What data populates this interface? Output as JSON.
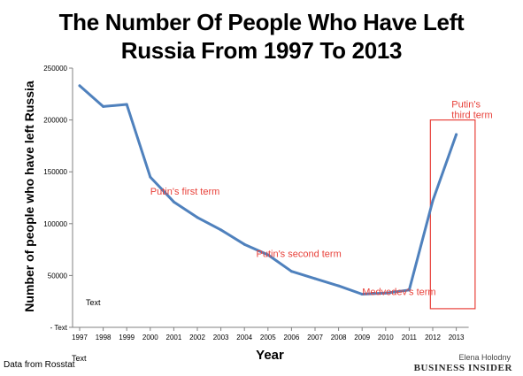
{
  "title_line1": "The Number Of People Who Have Left",
  "title_line2": "Russia From 1997 To 2013",
  "source": "Data from Rosstat",
  "credit_name": "Elena Holodny",
  "credit_brand": "BUSINESS INSIDER",
  "placeholder_text": "Text",
  "colors": {
    "line": "#4f81bd",
    "annotation": "#e8413a",
    "axis": "#808080"
  },
  "chart_data": {
    "type": "line",
    "title": "The Number Of People Who Have Left Russia From 1997 To 2013",
    "xlabel": "Year",
    "ylabel": "Number of people who have left Russia",
    "ylim": [
      0,
      250000
    ],
    "yticks": [
      0,
      50000,
      100000,
      150000,
      200000,
      250000
    ],
    "ytick_labels": [
      "Text",
      "50000",
      "100000",
      "150000",
      "200000",
      "250000"
    ],
    "x": [
      "1997",
      "1998",
      "1999",
      "2000",
      "2001",
      "2002",
      "2003",
      "2004",
      "2005",
      "2006",
      "2007",
      "2008",
      "2009",
      "2010",
      "2011",
      "2012",
      "2013"
    ],
    "series": [
      {
        "values": [
          233000,
          213000,
          215000,
          145000,
          121000,
          106000,
          94000,
          80000,
          70000,
          54000,
          47000,
          40000,
          32000,
          33000,
          36000,
          122000,
          186000
        ]
      }
    ],
    "grid": false,
    "annotations": [
      {
        "text": "Putin's first term",
        "x": "2000",
        "y": 128000
      },
      {
        "text": "Putin's second term",
        "x": "2004.5",
        "y": 68000
      },
      {
        "text": "Medvedev's term",
        "x": "2009",
        "y": 31000
      },
      {
        "text": "Putin's\nthird term",
        "x": "2012.8",
        "y": 212000
      }
    ],
    "highlight_box": {
      "x_from": "2011.9",
      "x_to": "2013.8",
      "y_from": 18000,
      "y_to": 200000
    }
  }
}
